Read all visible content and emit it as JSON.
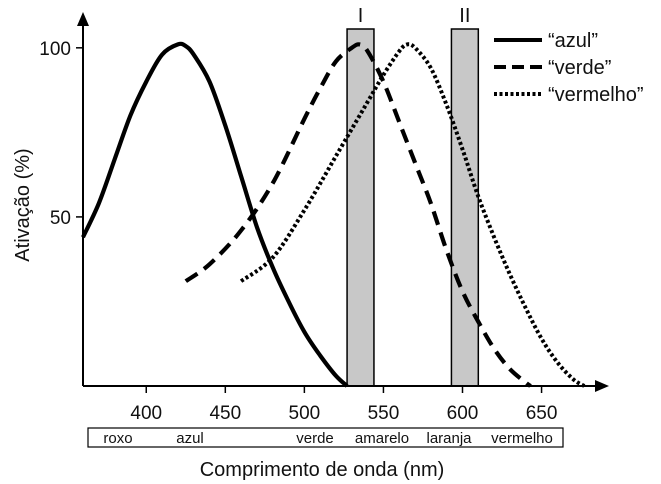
{
  "chart_data": {
    "type": "line",
    "xlabel": "Comprimento de onda (nm)",
    "ylabel": "Ativação (%)",
    "xlim": [
      360,
      680
    ],
    "ylim": [
      0,
      110
    ],
    "xticks": [
      "400",
      "450",
      "500",
      "550",
      "600",
      "650"
    ],
    "yticks": [
      "50",
      "100"
    ],
    "grid": false,
    "legend_position": "top-right",
    "series": [
      {
        "name": "“azul”",
        "style": "solid",
        "x": [
          360,
          370,
          380,
          390,
          400,
          410,
          420,
          425,
          430,
          440,
          450,
          460,
          470,
          480,
          490,
          500,
          510,
          520,
          527
        ],
        "y": [
          44,
          54,
          67,
          80,
          90,
          98,
          101,
          100.5,
          98,
          90,
          77,
          62,
          47,
          35,
          25,
          16,
          9,
          3,
          0
        ]
      },
      {
        "name": "“verde”",
        "style": "dashed",
        "x": [
          425,
          440,
          460,
          480,
          500,
          510,
          520,
          530,
          535,
          540,
          550,
          560,
          570,
          580,
          590,
          600,
          610,
          620,
          630,
          640,
          643
        ],
        "y": [
          31,
          36,
          46,
          60,
          79,
          88,
          96,
          100,
          101,
          99,
          90,
          78,
          66,
          54,
          40,
          28,
          19,
          11,
          5,
          1,
          0
        ]
      },
      {
        "name": "“vermelho”",
        "style": "dotted",
        "x": [
          460,
          480,
          500,
          520,
          540,
          550,
          560,
          565,
          570,
          580,
          590,
          600,
          610,
          620,
          630,
          640,
          650,
          660,
          670,
          677
        ],
        "y": [
          31,
          38,
          52,
          68,
          84,
          92,
          99,
          101,
          100,
          94,
          83,
          70,
          56,
          44,
          33,
          23,
          14,
          7,
          2,
          0
        ]
      }
    ],
    "bands": [
      {
        "label": "I",
        "from": 527,
        "to": 544
      },
      {
        "label": "II",
        "from": 593,
        "to": 610
      }
    ],
    "color_labels": [
      "roxo",
      "azul",
      "verde",
      "amarelo",
      "laranja",
      "vermelho"
    ]
  }
}
